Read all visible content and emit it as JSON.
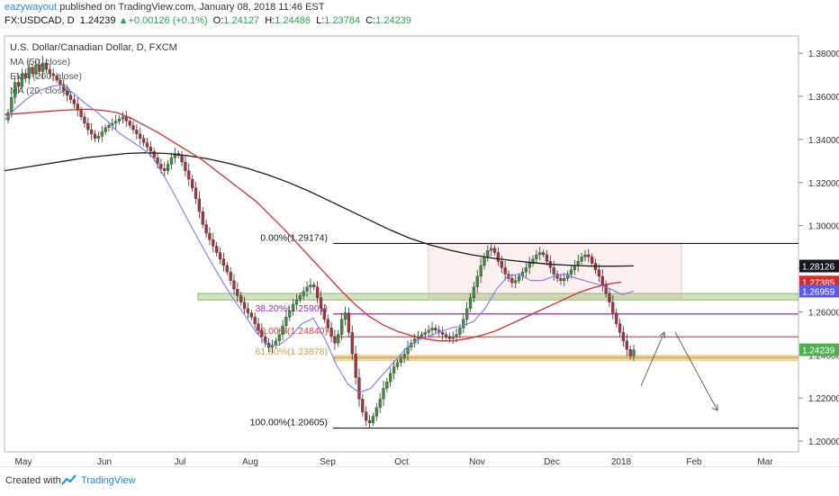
{
  "header": {
    "author": "eazywayout",
    "published_text": " published on TradingView.com, January 08, 2018 11:46 EST",
    "symbol": "FX:USDCAD, D",
    "last": "1.24239",
    "change_arrow": "▲",
    "change": "+0.00126 (+0.1%)",
    "o_label": "O:",
    "o": "1.24127",
    "h_label": "H:",
    "h": "1.24486",
    "l_label": "L:",
    "l": "1.23784",
    "c_label": "C:",
    "c": "1.24239"
  },
  "footer": {
    "created": "Created with",
    "brand": "TradingView"
  },
  "chart_data": {
    "type": "candlestick",
    "title": "U.S. Dollar/Canadian Dollar, D, FXCM",
    "legend": [
      "MA (50, close)",
      "EMA (200, close)",
      "MA (20, close)"
    ],
    "ylim": [
      1.195,
      1.388
    ],
    "y_ticks": [
      "1.38000",
      "1.36000",
      "1.34000",
      "1.32000",
      "1.30000",
      "1.28000",
      "1.26000",
      "1.24000",
      "1.22000",
      "1.20000"
    ],
    "x_ticks": [
      "May",
      "Jun",
      "Jul",
      "Aug",
      "Sep",
      "Oct",
      "Nov",
      "Dec",
      "2018",
      "Feb",
      "Mar"
    ],
    "price_labels": [
      {
        "text": "1.28126",
        "value": 1.28126,
        "color": "#131722"
      },
      {
        "text": "1.27385",
        "value": 1.27385,
        "color": "#d32f2f"
      },
      {
        "text": "1.26959",
        "value": 1.26959,
        "color": "#5b5be6"
      },
      {
        "text": "1.24239",
        "value": 1.24239,
        "color": "#4caf50"
      }
    ],
    "fib_levels": [
      {
        "label": "0.00%(1.29174)",
        "value": 1.29174,
        "color": "#131722"
      },
      {
        "label": "38.20%(1.25901)",
        "value": 1.25901,
        "color": "#9c27b0"
      },
      {
        "label": "50.00%(1.24840)",
        "value": 1.2484,
        "color": "#e53935"
      },
      {
        "label": "61.80%(1.23878)",
        "value": 1.23878,
        "color": "#c7a04a"
      },
      {
        "label": "100.00%(1.20605)",
        "value": 1.20605,
        "color": "#131722"
      }
    ],
    "support_zone": [
      1.2655,
      1.2685
    ],
    "resistance_box": [
      1.2665,
      1.2915
    ],
    "closes": [
      1.3525,
      1.3595,
      1.3665,
      1.3645,
      1.3705,
      1.3685,
      1.3735,
      1.3705,
      1.3745,
      1.3715,
      1.3755,
      1.3725,
      1.3705,
      1.3695,
      1.3675,
      1.3655,
      1.3625,
      1.3605,
      1.3585,
      1.3565,
      1.3535,
      1.3505,
      1.3475,
      1.3445,
      1.3425,
      1.3405,
      1.3415,
      1.3435,
      1.3455,
      1.3465,
      1.3475,
      1.3485,
      1.3495,
      1.3505,
      1.3485,
      1.3465,
      1.3445,
      1.3425,
      1.3405,
      1.3385,
      1.3365,
      1.3345,
      1.3315,
      1.3285,
      1.3265,
      1.3255,
      1.3285,
      1.3315,
      1.3335,
      1.3325,
      1.3295,
      1.3255,
      1.3215,
      1.3175,
      1.3125,
      1.3065,
      1.3005,
      1.2965,
      1.2935,
      1.2905,
      1.2875,
      1.2845,
      1.2815,
      1.2785,
      1.2745,
      1.2705,
      1.2675,
      1.2645,
      1.2615,
      1.2595,
      1.2575,
      1.2545,
      1.2515,
      1.2485,
      1.2455,
      1.2435,
      1.2445,
      1.2465,
      1.2495,
      1.2535,
      1.2575,
      1.2605,
      1.2635,
      1.2655,
      1.2675,
      1.2695,
      1.2715,
      1.2725,
      1.2715,
      1.2665,
      1.2615,
      1.2565,
      1.2525,
      1.2485,
      1.2455,
      1.2495,
      1.2565,
      1.2595,
      1.2505,
      1.2405,
      1.2295,
      1.2195,
      1.2135,
      1.2095,
      1.2085,
      1.2115,
      1.2155,
      1.2195,
      1.2245,
      1.2275,
      1.2315,
      1.2345,
      1.2365,
      1.2385,
      1.2405,
      1.2435,
      1.2455,
      1.2475,
      1.2485,
      1.2495,
      1.2505,
      1.2515,
      1.2525,
      1.2515,
      1.2505,
      1.2495,
      1.2485,
      1.2475,
      1.2485,
      1.2495,
      1.2525,
      1.2565,
      1.2615,
      1.2665,
      1.2715,
      1.2765,
      1.2815,
      1.2855,
      1.2885,
      1.2895,
      1.2875,
      1.2835,
      1.2805,
      1.2775,
      1.2755,
      1.2735,
      1.2745,
      1.2765,
      1.2785,
      1.2805,
      1.2825,
      1.2845,
      1.2865,
      1.2875,
      1.2865,
      1.2835,
      1.2805,
      1.2775,
      1.2755,
      1.2745,
      1.2755,
      1.2775,
      1.2795,
      1.2815,
      1.2835,
      1.2855,
      1.2865,
      1.2855,
      1.2825,
      1.2795,
      1.2765,
      1.2725,
      1.2685,
      1.2645,
      1.2595,
      1.2545,
      1.2505,
      1.2465,
      1.2425,
      1.2395,
      1.2424
    ],
    "ma50": [
      1.3515,
      1.352,
      1.3525,
      1.353,
      1.3535,
      1.3538,
      1.354,
      1.3535,
      1.3525,
      1.35,
      1.3465,
      1.343,
      1.339,
      1.335,
      1.331,
      1.326,
      1.321,
      1.316,
      1.311,
      1.3045,
      1.298,
      1.291,
      1.284,
      1.277,
      1.27,
      1.2635,
      1.258,
      1.254,
      1.251,
      1.249,
      1.2475,
      1.2465,
      1.2465,
      1.2475,
      1.249,
      1.251,
      1.254,
      1.257,
      1.26,
      1.263,
      1.266,
      1.269,
      1.2712,
      1.2728,
      1.2738
    ],
    "ema200": [
      1.3255,
      1.327,
      1.3285,
      1.33,
      1.3315,
      1.3325,
      1.3335,
      1.3338,
      1.3335,
      1.3325,
      1.331,
      1.329,
      1.3265,
      1.3235,
      1.32,
      1.316,
      1.3115,
      1.307,
      1.3025,
      1.298,
      1.294,
      1.291,
      1.2885,
      1.2865,
      1.285,
      1.2838,
      1.2828,
      1.282,
      1.2815,
      1.2812,
      1.2812,
      1.2813
    ],
    "ma20": [
      1.349,
      1.3545,
      1.359,
      1.3625,
      1.3645,
      1.3655,
      1.3615,
      1.357,
      1.353,
      1.3485,
      1.343,
      1.3395,
      1.336,
      1.3315,
      1.3225,
      1.313,
      1.303,
      1.293,
      1.2835,
      1.2745,
      1.266,
      1.2585,
      1.2505,
      1.2445,
      1.2445,
      1.2485,
      1.2545,
      1.257,
      1.2475,
      1.2355,
      1.2265,
      1.2225,
      1.2245,
      1.2305,
      1.2365,
      1.2425,
      1.2465,
      1.2485,
      1.2505,
      1.2525,
      1.2535,
      1.2555,
      1.2615,
      1.2705,
      1.2765,
      1.2775,
      1.2745,
      1.2745,
      1.2765,
      1.2775,
      1.2755,
      1.274,
      1.2725,
      1.2705,
      1.268,
      1.2696
    ]
  }
}
